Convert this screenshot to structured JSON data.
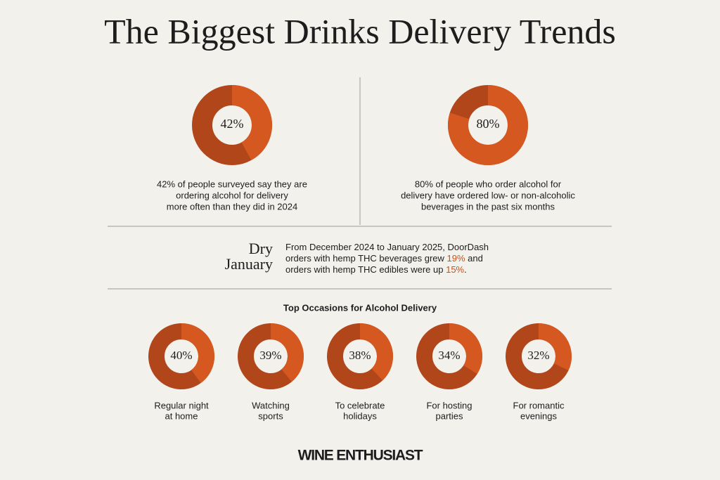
{
  "title": "The Biggest Drinks Delivery Trends",
  "chart_data": [
    {
      "type": "donut",
      "values": [
        42
      ],
      "value_labels": [
        "42%"
      ],
      "color": "#d4581f",
      "rest_color": "#b1461b",
      "caption": [
        "42% of people surveyed say they are",
        "ordering alcohol for delivery",
        "more often than they did in 2024"
      ]
    },
    {
      "type": "donut",
      "values": [
        80
      ],
      "value_labels": [
        "80%"
      ],
      "color": "#d4581f",
      "rest_color": "#b1461b",
      "caption": [
        "80% of people who order alcohol for",
        "delivery have ordered low- or non-alcoholic",
        "beverages in the past six months"
      ]
    },
    {
      "type": "donut",
      "values": [
        40
      ],
      "value_labels": [
        "40%"
      ],
      "color": "#d4581f",
      "rest_color": "#b1461b",
      "caption": [
        "Regular night",
        "at home"
      ]
    },
    {
      "type": "donut",
      "values": [
        39
      ],
      "value_labels": [
        "39%"
      ],
      "color": "#d4581f",
      "rest_color": "#b1461b",
      "caption": [
        "Watching",
        "sports"
      ]
    },
    {
      "type": "donut",
      "values": [
        38
      ],
      "value_labels": [
        "38%"
      ],
      "color": "#d4581f",
      "rest_color": "#b1461b",
      "caption": [
        "To celebrate",
        "holidays"
      ]
    },
    {
      "type": "donut",
      "values": [
        34
      ],
      "value_labels": [
        "34%"
      ],
      "color": "#d4581f",
      "rest_color": "#b1461b",
      "caption": [
        "For hosting",
        "parties"
      ]
    },
    {
      "type": "donut",
      "values": [
        32
      ],
      "value_labels": [
        "32%"
      ],
      "color": "#d4581f",
      "rest_color": "#b1461b",
      "caption": [
        "For romantic",
        "evenings"
      ]
    }
  ],
  "dry_january": {
    "heading": [
      "Dry",
      "January"
    ],
    "color": "#c0531e",
    "lines": [
      [
        "From December 2024 to January 2025, DoorDash"
      ],
      [
        "orders with hemp THC beverages grew ",
        {
          "text": "19%",
          "color": "#c0531e"
        },
        " and"
      ],
      [
        "orders with hemp THC edibles were up ",
        {
          "text": "15%",
          "color": "#c0531e"
        },
        "."
      ]
    ]
  },
  "occasions_heading": "Top Occasions for Alcohol Delivery",
  "logo": "WINE ENTHUSIAST"
}
